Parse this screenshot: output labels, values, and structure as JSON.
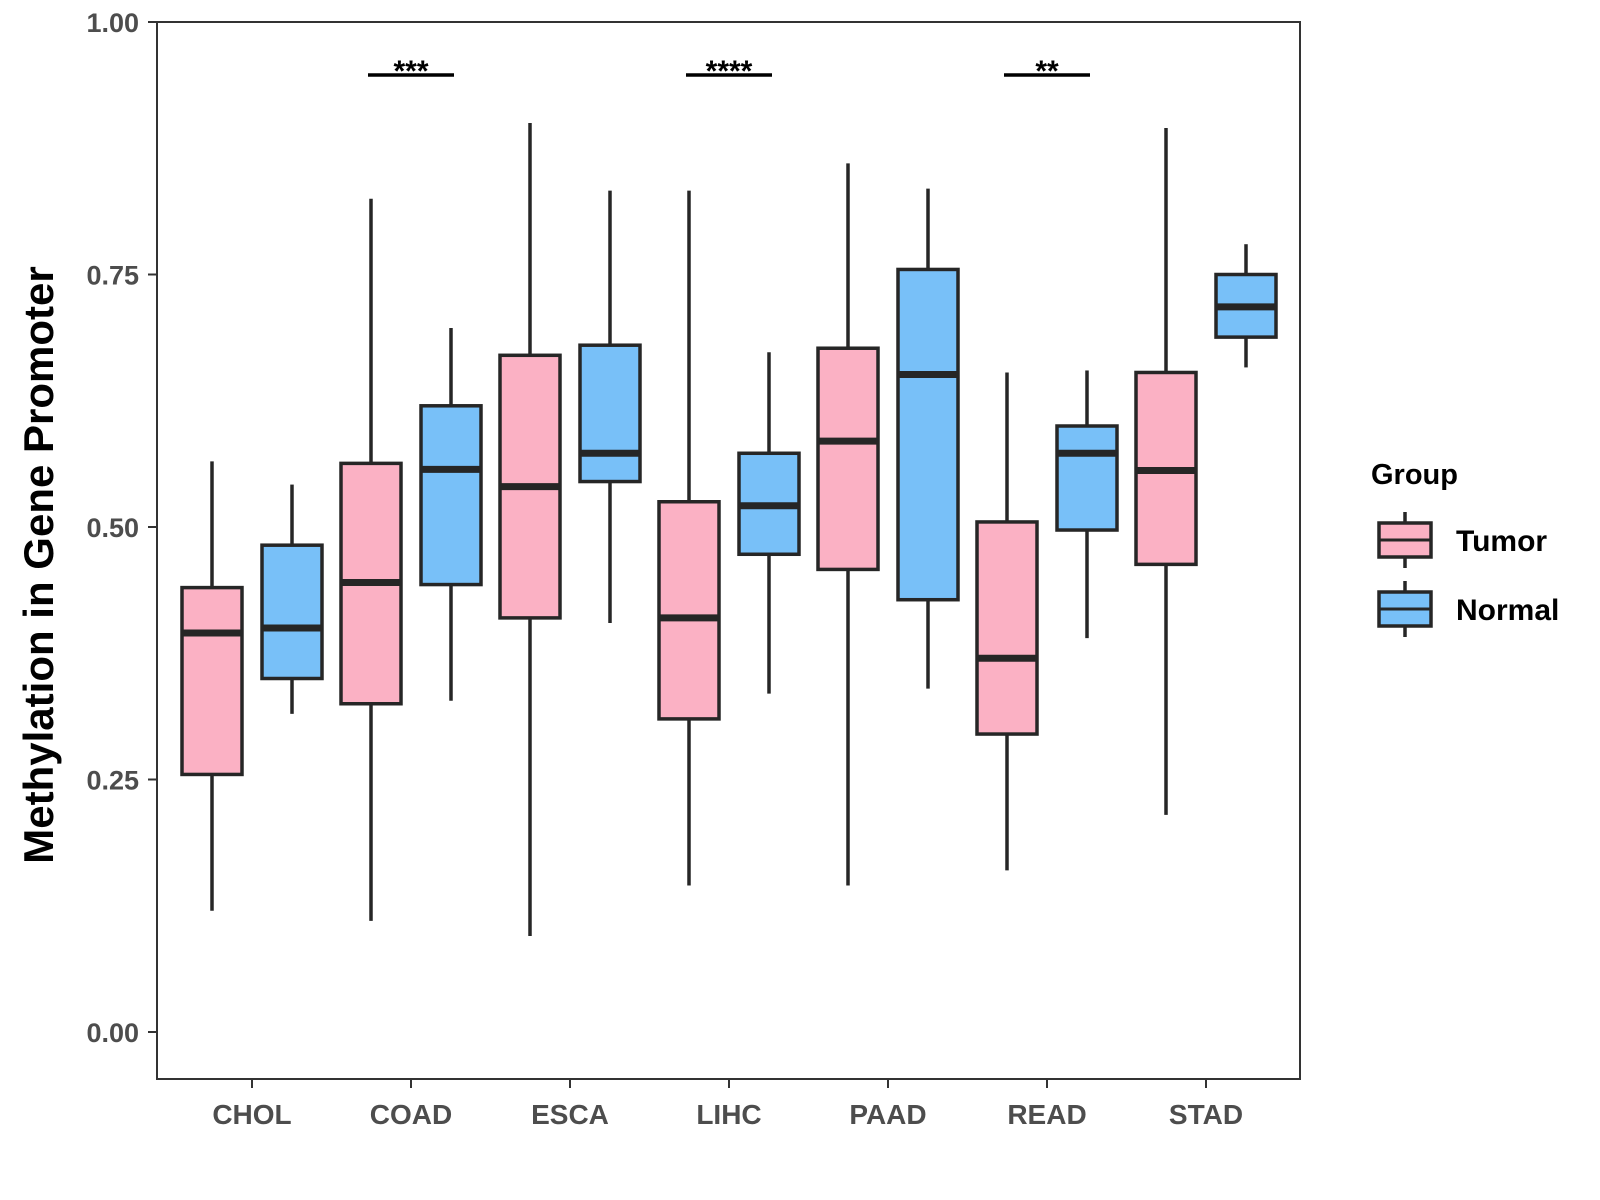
{
  "chart_data": {
    "type": "boxplot",
    "title": "",
    "xlabel": "",
    "ylabel": "Methylation in Gene Promoter",
    "ylim": [
      -0.05,
      1.0
    ],
    "yticks": [
      0.0,
      0.25,
      0.5,
      0.75,
      1.0
    ],
    "ytick_labels": [
      "0.00",
      "0.25",
      "0.50",
      "0.75",
      "1.00"
    ],
    "grid": false,
    "legend": {
      "title": "Group",
      "position": "right"
    },
    "categories": [
      "CHOL",
      "COAD",
      "ESCA",
      "LIHC",
      "PAAD",
      "READ",
      "STAD"
    ],
    "series": [
      {
        "name": "Tumor",
        "color": "#fbb1c4",
        "boxes": [
          {
            "min": 0.12,
            "q1": 0.255,
            "median": 0.395,
            "q3": 0.44,
            "max": 0.565
          },
          {
            "min": 0.11,
            "q1": 0.325,
            "median": 0.445,
            "q3": 0.563,
            "max": 0.825
          },
          {
            "min": 0.095,
            "q1": 0.41,
            "median": 0.54,
            "q3": 0.67,
            "max": 0.9
          },
          {
            "min": 0.145,
            "q1": 0.31,
            "median": 0.41,
            "q3": 0.525,
            "max": 0.833
          },
          {
            "min": 0.145,
            "q1": 0.458,
            "median": 0.585,
            "q3": 0.677,
            "max": 0.86
          },
          {
            "min": 0.16,
            "q1": 0.295,
            "median": 0.37,
            "q3": 0.505,
            "max": 0.653
          },
          {
            "min": 0.215,
            "q1": 0.463,
            "median": 0.556,
            "q3": 0.653,
            "max": 0.895
          }
        ]
      },
      {
        "name": "Normal",
        "color": "#78c0f8",
        "boxes": [
          {
            "min": 0.315,
            "q1": 0.35,
            "median": 0.4,
            "q3": 0.482,
            "max": 0.542
          },
          {
            "min": 0.328,
            "q1": 0.443,
            "median": 0.557,
            "q3": 0.62,
            "max": 0.697
          },
          {
            "min": 0.405,
            "q1": 0.545,
            "median": 0.573,
            "q3": 0.68,
            "max": 0.833
          },
          {
            "min": 0.335,
            "q1": 0.473,
            "median": 0.521,
            "q3": 0.573,
            "max": 0.673
          },
          {
            "min": 0.34,
            "q1": 0.428,
            "median": 0.651,
            "q3": 0.755,
            "max": 0.835
          },
          {
            "min": 0.39,
            "q1": 0.497,
            "median": 0.573,
            "q3": 0.6,
            "max": 0.655
          },
          {
            "min": 0.658,
            "q1": 0.688,
            "median": 0.718,
            "q3": 0.75,
            "max": 0.78
          }
        ]
      }
    ],
    "significance": [
      {
        "category": "COAD",
        "label": "***"
      },
      {
        "category": "LIHC",
        "label": "****"
      },
      {
        "category": "READ",
        "label": "**"
      }
    ]
  }
}
